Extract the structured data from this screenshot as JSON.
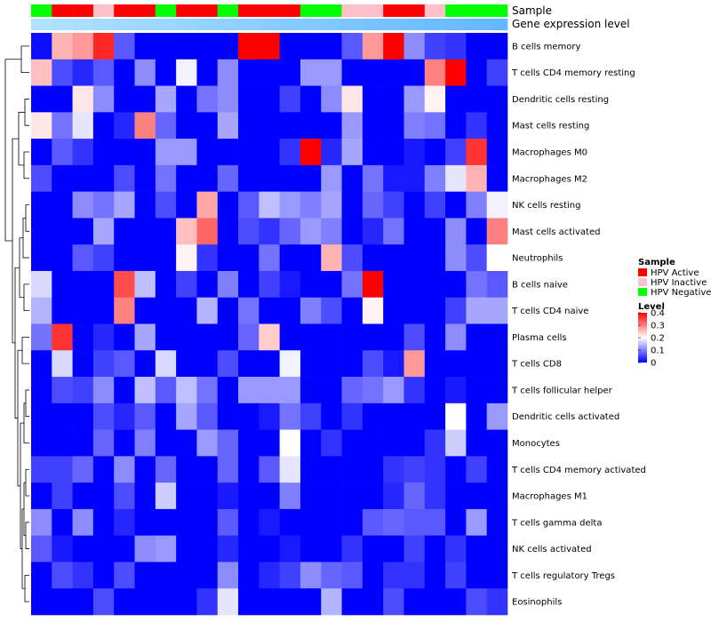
{
  "chart_data": {
    "type": "heatmap",
    "title": "",
    "annotation_rows": [
      "Sample",
      "Gene expression level"
    ],
    "sample_groups": [
      "HPV Negative",
      "HPV Active",
      "HPV Active",
      "HPV Inactive",
      "HPV Active",
      "HPV Active",
      "HPV Negative",
      "HPV Active",
      "HPV Active",
      "HPV Negative",
      "HPV Active",
      "HPV Active",
      "HPV Active",
      "HPV Negative",
      "HPV Negative",
      "HPV Inactive",
      "HPV Inactive",
      "HPV Active",
      "HPV Active",
      "HPV Inactive",
      "HPV Negative",
      "HPV Negative",
      "HPV Negative"
    ],
    "expression_level": [
      0,
      0.05,
      0.09,
      0.14,
      0.18,
      0.23,
      0.27,
      0.32,
      0.36,
      0.41,
      0.45,
      0.5,
      0.55,
      0.59,
      0.64,
      0.68,
      0.73,
      0.77,
      0.82,
      0.86,
      0.91,
      0.95,
      1
    ],
    "rows": [
      "B cells memory",
      "T cells CD4 memory resting",
      "Dendritic cells resting",
      "Mast cells resting",
      "Macrophages M0",
      "Macrophages M2",
      "NK cells resting",
      "Mast cells activated",
      "Neutrophils",
      "B cells naive",
      "T cells CD4 naive",
      "Plasma cells",
      "T cells CD8",
      "T cells follicular helper",
      "Dendritic cells activated",
      "Monocytes",
      "T cells CD4 memory activated",
      "Macrophages M1",
      "T cells gamma delta",
      "NK cells activated",
      "T cells regulatory  Tregs",
      "Eosinophils"
    ],
    "values": [
      [
        0.01,
        0.26,
        0.28,
        0.37,
        0.07,
        0.0,
        0.0,
        0.0,
        0.0,
        0.0,
        0.4,
        0.4,
        0.0,
        0.0,
        0.0,
        0.07,
        0.28,
        0.4,
        0.11,
        0.05,
        0.04,
        0.0,
        0.0
      ],
      [
        0.25,
        0.06,
        0.03,
        0.07,
        0.0,
        0.11,
        0.0,
        0.19,
        0.0,
        0.11,
        0.0,
        0.0,
        0.0,
        0.12,
        0.12,
        0.0,
        0.0,
        0.0,
        0.0,
        0.3,
        0.4,
        0.0,
        0.05
      ],
      [
        0.0,
        0.0,
        0.22,
        0.11,
        0.0,
        0.0,
        0.13,
        0.0,
        0.09,
        0.11,
        0.0,
        0.0,
        0.05,
        0.0,
        0.11,
        0.22,
        0.0,
        0.0,
        0.12,
        0.21,
        0.0,
        0.0,
        0.0
      ],
      [
        0.22,
        0.09,
        0.18,
        0.0,
        0.03,
        0.3,
        0.08,
        0.0,
        0.0,
        0.13,
        0.0,
        0.0,
        0.0,
        0.0,
        0.0,
        0.12,
        0.0,
        0.0,
        0.1,
        0.09,
        0.0,
        0.04,
        0.0
      ],
      [
        0.0,
        0.07,
        0.04,
        0.0,
        0.0,
        0.0,
        0.12,
        0.12,
        0.0,
        0.0,
        0.0,
        0.0,
        0.04,
        0.4,
        0.03,
        0.13,
        0.0,
        0.0,
        0.02,
        0.0,
        0.05,
        0.36,
        0.0
      ],
      [
        0.06,
        0.0,
        0.0,
        0.0,
        0.06,
        0.0,
        0.09,
        0.0,
        0.0,
        0.08,
        0.0,
        0.0,
        0.0,
        0.0,
        0.12,
        0.0,
        0.09,
        0.02,
        0.02,
        0.1,
        0.18,
        0.26,
        0.0
      ],
      [
        0.0,
        0.0,
        0.11,
        0.09,
        0.13,
        0.0,
        0.06,
        0.0,
        0.27,
        0.0,
        0.07,
        0.15,
        0.12,
        0.1,
        0.13,
        0.0,
        0.08,
        0.05,
        0.0,
        0.05,
        0.0,
        0.1,
        0.19
      ],
      [
        0.0,
        0.0,
        0.0,
        0.13,
        0.0,
        0.0,
        0.0,
        0.25,
        0.32,
        0.0,
        0.06,
        0.04,
        0.08,
        0.12,
        0.1,
        0.0,
        0.03,
        0.09,
        0.0,
        0.0,
        0.11,
        0.0,
        0.3
      ],
      [
        0.0,
        0.0,
        0.07,
        0.05,
        0.0,
        0.0,
        0.0,
        0.21,
        0.04,
        0.0,
        0.0,
        0.09,
        0.0,
        0.0,
        0.26,
        0.06,
        0.0,
        0.0,
        0.0,
        0.0,
        0.11,
        0.06,
        0.2
      ],
      [
        0.17,
        0.0,
        0.0,
        0.0,
        0.34,
        0.15,
        0.0,
        0.05,
        0.0,
        0.1,
        0.0,
        0.05,
        0.02,
        0.0,
        0.0,
        0.09,
        0.4,
        0.0,
        0.0,
        0.0,
        0.0,
        0.09,
        0.07
      ],
      [
        0.14,
        0.0,
        0.0,
        0.0,
        0.3,
        0.0,
        0.0,
        0.0,
        0.14,
        0.0,
        0.09,
        0.0,
        0.0,
        0.1,
        0.06,
        0.0,
        0.21,
        0.0,
        0.0,
        0.0,
        0.05,
        0.13,
        0.13
      ],
      [
        0.09,
        0.36,
        0.0,
        0.03,
        0.0,
        0.13,
        0.0,
        0.0,
        0.0,
        0.0,
        0.08,
        0.24,
        0.0,
        0.0,
        0.0,
        0.0,
        0.0,
        0.0,
        0.06,
        0.0,
        0.11,
        0.0,
        0.0
      ],
      [
        0.0,
        0.17,
        0.0,
        0.05,
        0.07,
        0.0,
        0.17,
        0.0,
        0.0,
        0.06,
        0.0,
        0.0,
        0.19,
        0.0,
        0.0,
        0.0,
        0.06,
        0.02,
        0.28,
        0.0,
        0.0,
        0.0,
        0.0
      ],
      [
        0.0,
        0.06,
        0.05,
        0.11,
        0.0,
        0.15,
        0.07,
        0.15,
        0.09,
        0.0,
        0.12,
        0.12,
        0.12,
        0.0,
        0.0,
        0.08,
        0.09,
        0.12,
        0.04,
        0.0,
        0.02,
        0.0,
        0.0
      ],
      [
        0.0,
        0.0,
        0.0,
        0.06,
        0.03,
        0.07,
        0.0,
        0.13,
        0.07,
        0.0,
        0.0,
        0.02,
        0.09,
        0.05,
        0.0,
        0.04,
        0.0,
        0.0,
        0.0,
        0.0,
        0.2,
        0.0,
        0.12
      ],
      [
        0.0,
        0.0,
        0.0,
        0.08,
        0.0,
        0.1,
        0.0,
        0.0,
        0.12,
        0.08,
        0.0,
        0.0,
        0.2,
        0.0,
        0.04,
        0.0,
        0.0,
        0.0,
        0.0,
        0.04,
        0.16,
        0.0,
        0.0
      ],
      [
        0.05,
        0.05,
        0.08,
        0.0,
        0.11,
        0.0,
        0.08,
        0.0,
        0.0,
        0.08,
        0.0,
        0.07,
        0.18,
        0.0,
        0.0,
        0.0,
        0.0,
        0.04,
        0.05,
        0.04,
        0.0,
        0.05,
        0.0
      ],
      [
        0.0,
        0.05,
        0.0,
        0.0,
        0.06,
        0.0,
        0.16,
        0.0,
        0.0,
        0.02,
        0.0,
        0.0,
        0.1,
        0.0,
        0.0,
        0.0,
        0.0,
        0.03,
        0.08,
        0.04,
        0.0,
        0.0,
        0.0
      ],
      [
        0.11,
        0.0,
        0.11,
        0.0,
        0.03,
        0.0,
        0.0,
        0.0,
        0.0,
        0.07,
        0.0,
        0.02,
        0.0,
        0.0,
        0.0,
        0.0,
        0.07,
        0.08,
        0.07,
        0.07,
        0.0,
        0.12,
        0.0
      ],
      [
        0.07,
        0.02,
        0.0,
        0.0,
        0.0,
        0.11,
        0.12,
        0.0,
        0.0,
        0.03,
        0.0,
        0.0,
        0.02,
        0.0,
        0.0,
        0.04,
        0.0,
        0.0,
        0.05,
        0.0,
        0.04,
        0.0,
        0.0
      ],
      [
        0.0,
        0.06,
        0.04,
        0.0,
        0.06,
        0.0,
        0.0,
        0.0,
        0.0,
        0.11,
        0.0,
        0.03,
        0.05,
        0.11,
        0.08,
        0.07,
        0.0,
        0.04,
        0.04,
        0.0,
        0.05,
        0.0,
        0.0
      ],
      [
        0.0,
        0.0,
        0.0,
        0.06,
        0.0,
        0.0,
        0.0,
        0.0,
        0.04,
        0.18,
        0.0,
        0.0,
        0.0,
        0.0,
        0.14,
        0.0,
        0.0,
        0.06,
        0.0,
        0.0,
        0.0,
        0.06,
        0.04
      ]
    ],
    "scale_range": [
      0,
      0.4
    ],
    "legend": {
      "sample_title": "Sample",
      "sample_entries": [
        "HPV Active",
        "HPV Inactive",
        "HPV Negative"
      ],
      "sample_colors": [
        "#ff0000",
        "#ffc0cb",
        "#00ff00"
      ],
      "level_title": "Level",
      "level_ticks": [
        "0.4",
        "0.3",
        "0.2",
        "0.1",
        "0"
      ],
      "level_tick_values": [
        0.4,
        0.3,
        0.2,
        0.1,
        0
      ],
      "level_colors": [
        "#0000ff",
        "#ffffff",
        "#ff0000"
      ],
      "placement": "right"
    },
    "expression_colors": [
      "#b0e2ff",
      "#63b8ff"
    ]
  }
}
